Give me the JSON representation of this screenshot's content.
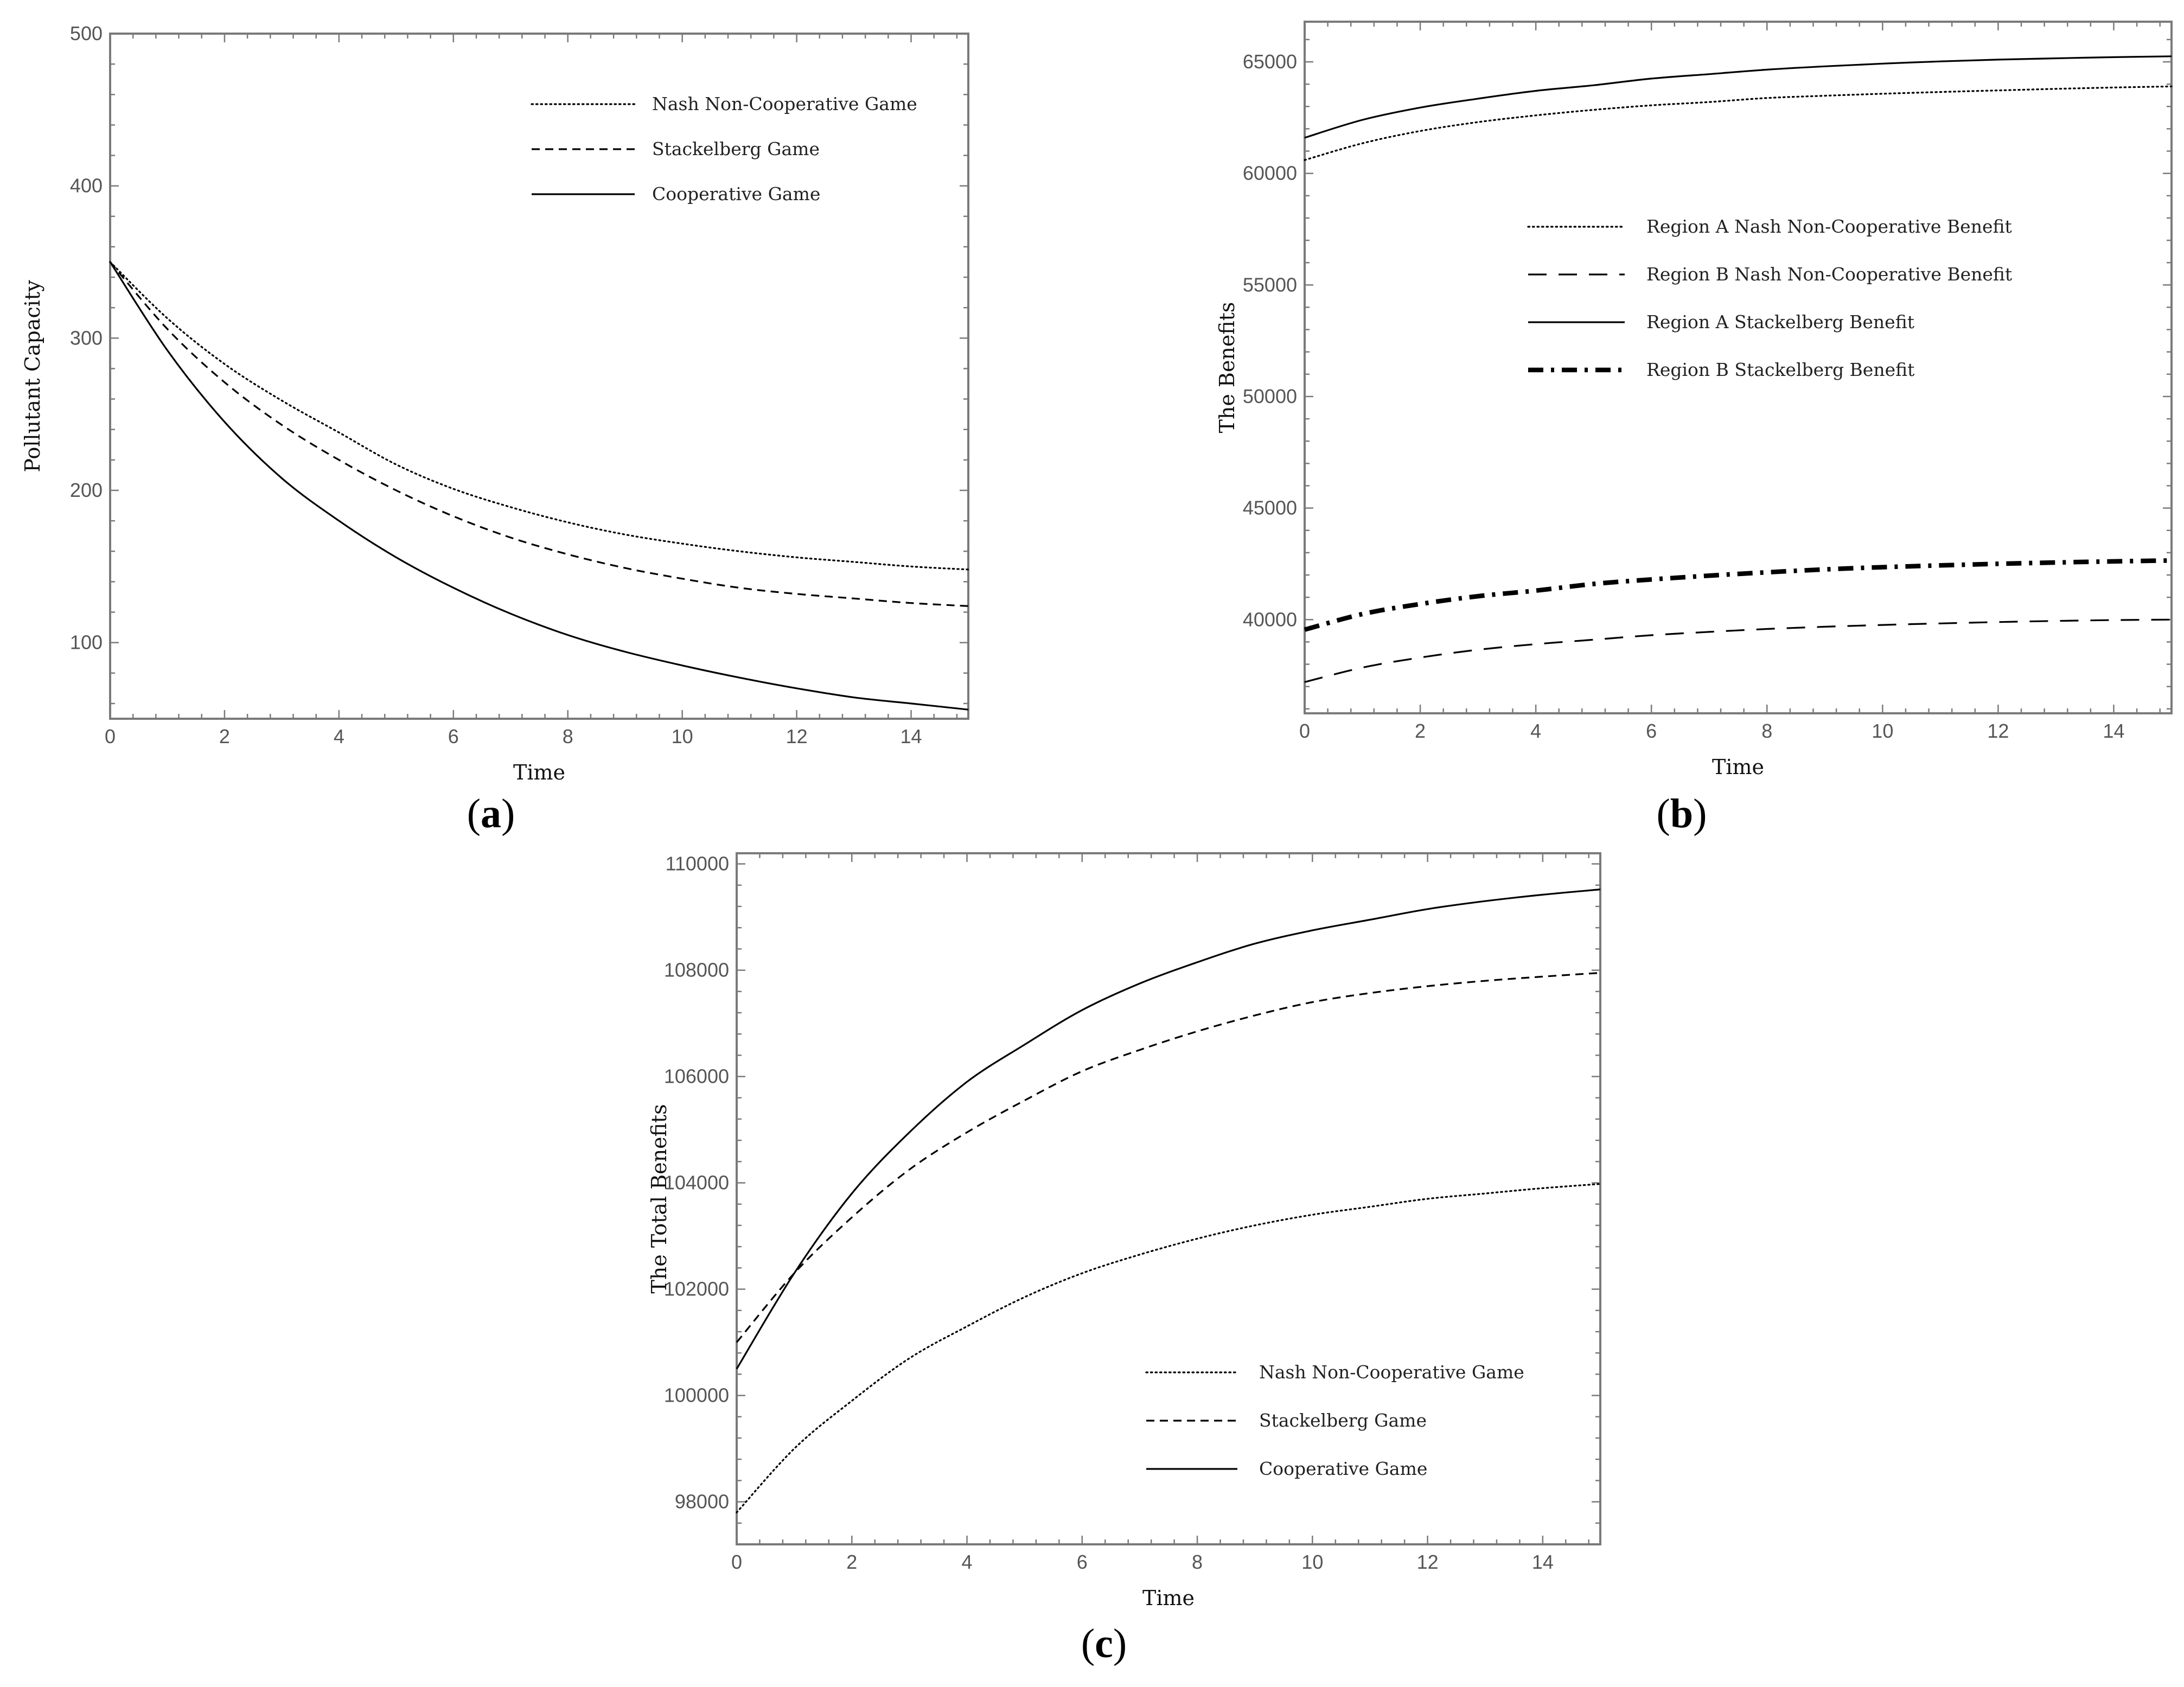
{
  "chart_data": [
    {
      "type": "line",
      "caption_open": "(",
      "caption_letter": "a",
      "caption_close": ")",
      "xlabel": "Time",
      "ylabel": "Pollutant Capacity",
      "xlim": [
        0,
        15
      ],
      "ylim": [
        50,
        500
      ],
      "xticks": [
        0,
        2,
        4,
        6,
        8,
        10,
        12,
        14
      ],
      "yticks": [
        100,
        200,
        300,
        400,
        500
      ],
      "ytick_labels": [
        "100",
        "200",
        "300",
        "400",
        "500"
      ],
      "legend_position": "top-right",
      "series": [
        {
          "name": "Nash Non-Cooperative Game",
          "style": "dotted",
          "x": [
            0,
            1,
            2,
            3,
            4,
            5,
            6,
            7,
            8,
            9,
            10,
            11,
            12,
            13,
            14,
            15
          ],
          "values": [
            350,
            313,
            283,
            259,
            238,
            217,
            201,
            189,
            179,
            171,
            165,
            160,
            156,
            153,
            150,
            148
          ]
        },
        {
          "name": "Stackelberg Game",
          "style": "dashed",
          "x": [
            0,
            1,
            2,
            3,
            4,
            5,
            6,
            7,
            8,
            9,
            10,
            11,
            12,
            13,
            14,
            15
          ],
          "values": [
            350,
            306,
            271,
            243,
            220,
            200,
            183,
            169,
            158,
            149,
            142,
            136,
            132,
            129,
            126,
            124
          ]
        },
        {
          "name": "Cooperative Game",
          "style": "solid",
          "x": [
            0,
            1,
            2,
            3,
            4,
            5,
            6,
            7,
            8,
            9,
            10,
            11,
            12,
            13,
            14,
            15
          ],
          "values": [
            350,
            292,
            245,
            208,
            180,
            156,
            136,
            119,
            105,
            94,
            85,
            77,
            70,
            64,
            60,
            56
          ]
        }
      ]
    },
    {
      "type": "line",
      "caption_open": "(",
      "caption_letter": "b",
      "caption_close": ")",
      "xlabel": "Time",
      "ylabel": "The Benefits",
      "xlim": [
        0,
        15
      ],
      "ylim": [
        35800,
        66800
      ],
      "xticks": [
        0,
        2,
        4,
        6,
        8,
        10,
        12,
        14
      ],
      "yticks": [
        40000,
        45000,
        50000,
        55000,
        60000,
        65000
      ],
      "ytick_labels": [
        "40000",
        "45000",
        "50000",
        "55000",
        "60000",
        "65000"
      ],
      "legend_position": "center-right",
      "series": [
        {
          "name": "Region A Nash Non-Cooperative Benefit",
          "style": "dotted",
          "x": [
            0,
            1,
            2,
            3,
            4,
            5,
            6,
            7,
            8,
            9,
            10,
            11,
            12,
            13,
            14,
            15
          ],
          "values": [
            60600,
            61350,
            61900,
            62300,
            62600,
            62850,
            63050,
            63200,
            63380,
            63480,
            63570,
            63650,
            63720,
            63790,
            63850,
            63900
          ]
        },
        {
          "name": "Region B Nash Non-Cooperative Benefit",
          "style": "longdash",
          "x": [
            0,
            1,
            2,
            3,
            4,
            5,
            6,
            7,
            8,
            9,
            10,
            11,
            12,
            13,
            14,
            15
          ],
          "values": [
            37200,
            37850,
            38300,
            38650,
            38900,
            39100,
            39300,
            39450,
            39580,
            39680,
            39760,
            39830,
            39890,
            39940,
            39980,
            40000
          ]
        },
        {
          "name": "Region A Stackelberg Benefit",
          "style": "solid",
          "x": [
            0,
            1,
            2,
            3,
            4,
            5,
            6,
            7,
            8,
            9,
            10,
            11,
            12,
            13,
            14,
            15
          ],
          "values": [
            61600,
            62400,
            62950,
            63350,
            63700,
            63950,
            64250,
            64450,
            64650,
            64800,
            64920,
            65020,
            65100,
            65160,
            65210,
            65250
          ]
        },
        {
          "name": "Region B Stackelberg Benefit",
          "style": "dashdot-bold",
          "x": [
            0,
            1,
            2,
            3,
            4,
            5,
            6,
            7,
            8,
            9,
            10,
            11,
            12,
            13,
            14,
            15
          ],
          "values": [
            39550,
            40250,
            40700,
            41050,
            41300,
            41600,
            41800,
            41970,
            42120,
            42250,
            42350,
            42430,
            42500,
            42560,
            42610,
            42650
          ]
        }
      ]
    },
    {
      "type": "line",
      "caption_open": "(",
      "caption_letter": "c",
      "caption_close": ")",
      "xlabel": "Time",
      "ylabel": "The Total Benefits",
      "xlim": [
        0,
        15
      ],
      "ylim": [
        97200,
        110200
      ],
      "xticks": [
        0,
        2,
        4,
        6,
        8,
        10,
        12,
        14
      ],
      "yticks": [
        98000,
        100000,
        102000,
        104000,
        106000,
        108000,
        110000
      ],
      "ytick_labels": [
        "98000",
        "100000",
        "102000",
        "104000",
        "106000",
        "108000",
        "110000"
      ],
      "legend_position": "bottom-right",
      "series": [
        {
          "name": "Nash Non-Cooperative Game",
          "style": "dotted",
          "x": [
            0,
            1,
            2,
            3,
            4,
            5,
            6,
            7,
            8,
            9,
            10,
            11,
            12,
            13,
            14,
            15
          ],
          "values": [
            97800,
            99000,
            99900,
            100700,
            101300,
            101850,
            102300,
            102650,
            102950,
            103200,
            103400,
            103550,
            103700,
            103800,
            103900,
            103980
          ]
        },
        {
          "name": "Stackelberg Game",
          "style": "dashed",
          "x": [
            0,
            1,
            2,
            3,
            4,
            5,
            6,
            7,
            8,
            9,
            10,
            11,
            12,
            13,
            14,
            15
          ],
          "values": [
            101000,
            102300,
            103350,
            104250,
            104950,
            105550,
            106100,
            106500,
            106850,
            107150,
            107400,
            107570,
            107700,
            107800,
            107880,
            107950
          ]
        },
        {
          "name": "Cooperative Game",
          "style": "solid",
          "x": [
            0,
            1,
            2,
            3,
            4,
            5,
            6,
            7,
            8,
            9,
            10,
            11,
            12,
            13,
            14,
            15
          ],
          "values": [
            100500,
            102300,
            103800,
            104950,
            105900,
            106600,
            107250,
            107750,
            108150,
            108500,
            108750,
            108950,
            109150,
            109300,
            109420,
            109520
          ]
        }
      ]
    }
  ]
}
